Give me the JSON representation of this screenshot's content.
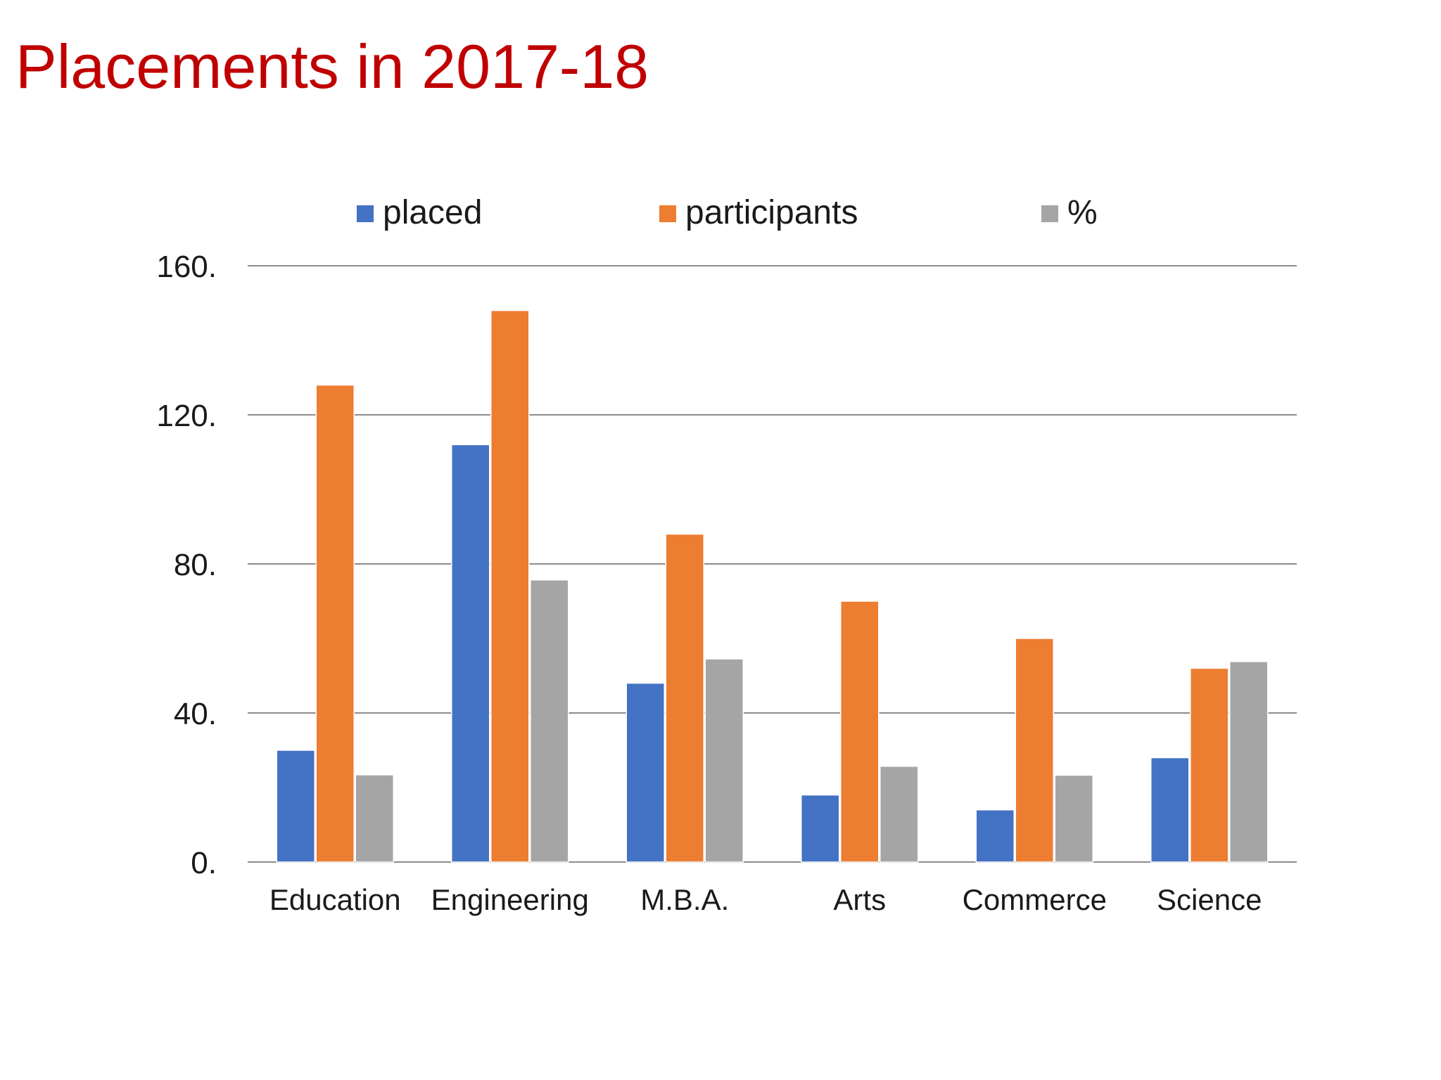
{
  "page": {
    "title": "Placements in 2017-18"
  },
  "colors": {
    "title": "#c00000",
    "gridline": "#8c8c8c",
    "placed": "#4472c4",
    "participants": "#ed7d31",
    "percent": "#a5a5a5"
  },
  "chart_data": {
    "type": "bar",
    "title": "",
    "xlabel": "",
    "ylabel": "",
    "categories": [
      "Education",
      "Engineering",
      "M.B.A.",
      "Arts",
      "Commerce",
      "Science"
    ],
    "series": [
      {
        "name": "placed",
        "color": "#4472c4",
        "values": [
          30,
          112,
          48,
          18,
          14,
          28
        ]
      },
      {
        "name": "participants",
        "color": "#ed7d31",
        "values": [
          128,
          148,
          88,
          70,
          60,
          52
        ]
      },
      {
        "name": "%",
        "color": "#a5a5a5",
        "values": [
          23.4,
          75.7,
          54.5,
          25.7,
          23.3,
          53.8
        ]
      }
    ],
    "ylim": [
      0,
      160
    ],
    "yticks": [
      0,
      40,
      80,
      120,
      160
    ],
    "ytick_labels": [
      "0.",
      "40.",
      "80.",
      "120.",
      "160."
    ],
    "grid": true,
    "legend_position": "top"
  }
}
